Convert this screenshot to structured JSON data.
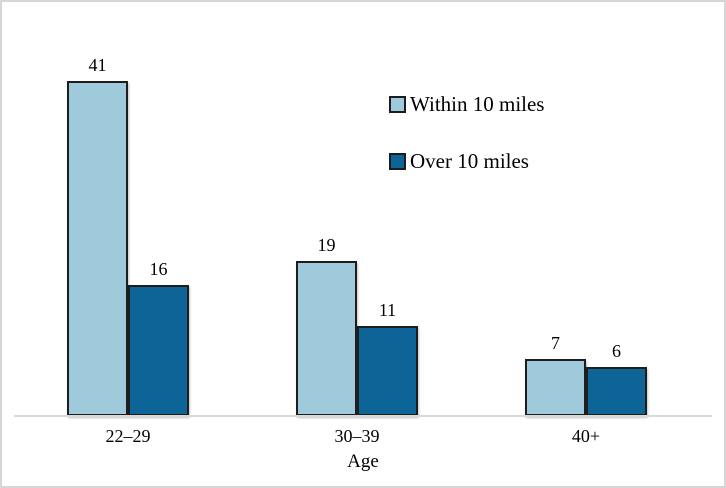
{
  "chart_data": {
    "type": "bar",
    "title": "",
    "categories": [
      "22–29",
      "30–39",
      "40+"
    ],
    "series": [
      {
        "name": "Within 10 miles",
        "color": "#9ecadb",
        "values": [
          41,
          19,
          7
        ]
      },
      {
        "name": "Over 10 miles",
        "color": "#0d6597",
        "values": [
          16,
          11,
          6
        ]
      }
    ],
    "xlabel": "Age",
    "ylabel": "",
    "ylim": [
      0,
      45
    ],
    "grid": false,
    "value_labels": true,
    "legend_position": "upper-right",
    "bar_border_color": "#1d1d1d",
    "axis_line_color": "#d9d9d9",
    "frame_border_color": "#d6d6d6",
    "background_color": "#ffffff"
  }
}
